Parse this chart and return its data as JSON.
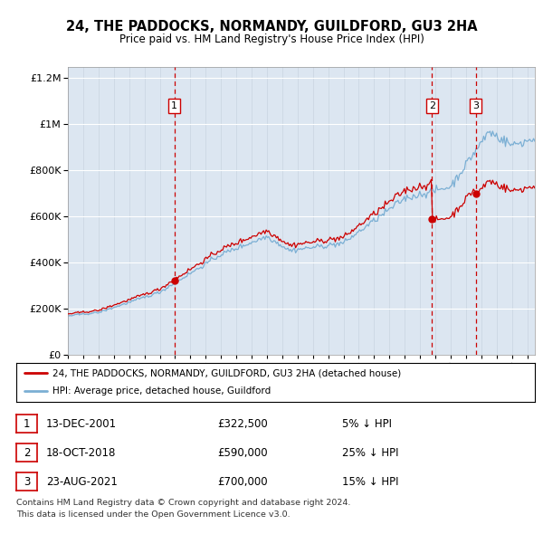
{
  "title": "24, THE PADDOCKS, NORMANDY, GUILDFORD, GU3 2HA",
  "subtitle": "Price paid vs. HM Land Registry's House Price Index (HPI)",
  "background_color": "#dce6f1",
  "plot_bg_color": "#dce6f1",
  "hpi_line_color": "#7bafd4",
  "price_line_color": "#cc0000",
  "sale_marker_color": "#cc0000",
  "sale_vline_color": "#cc0000",
  "sales": [
    {
      "date_num": 2001.96,
      "price": 322500,
      "label": "1"
    },
    {
      "date_num": 2018.79,
      "price": 590000,
      "label": "2"
    },
    {
      "date_num": 2021.64,
      "price": 700000,
      "label": "3"
    }
  ],
  "legend_entries": [
    "24, THE PADDOCKS, NORMANDY, GUILDFORD, GU3 2HA (detached house)",
    "HPI: Average price, detached house, Guildford"
  ],
  "table_rows": [
    {
      "num": "1",
      "date": "13-DEC-2001",
      "price": "£322,500",
      "pct": "5% ↓ HPI"
    },
    {
      "num": "2",
      "date": "18-OCT-2018",
      "price": "£590,000",
      "pct": "25% ↓ HPI"
    },
    {
      "num": "3",
      "date": "23-AUG-2021",
      "price": "£700,000",
      "pct": "15% ↓ HPI"
    }
  ],
  "footnote1": "Contains HM Land Registry data © Crown copyright and database right 2024.",
  "footnote2": "This data is licensed under the Open Government Licence v3.0.",
  "ylim": [
    0,
    1250000
  ],
  "yticks": [
    0,
    200000,
    400000,
    600000,
    800000,
    1000000,
    1200000
  ],
  "xlim_start": 1995.0,
  "xlim_end": 2025.5
}
